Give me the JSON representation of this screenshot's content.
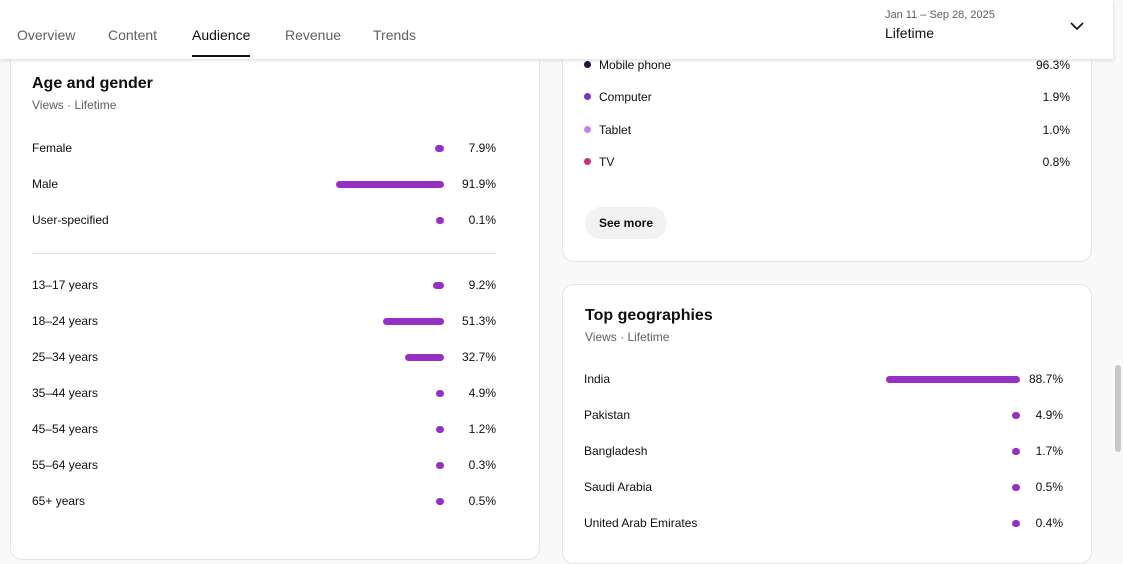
{
  "tabs": [
    "Overview",
    "Content",
    "Audience",
    "Revenue",
    "Trends"
  ],
  "active_tab": "Audience",
  "date_range": {
    "dates": "Jan 11 – Sep 28, 2025",
    "value": "Lifetime"
  },
  "age_gender": {
    "title": "Age and gender",
    "subtitle": "Views · Lifetime",
    "gender": [
      {
        "label": "Female",
        "pct": 7.9,
        "text": "7.9%"
      },
      {
        "label": "Male",
        "pct": 91.9,
        "text": "91.9%"
      },
      {
        "label": "User-specified",
        "pct": 0.1,
        "text": "0.1%"
      }
    ],
    "age": [
      {
        "label": "13–17 years",
        "pct": 9.2,
        "text": "9.2%"
      },
      {
        "label": "18–24 years",
        "pct": 51.3,
        "text": "51.3%"
      },
      {
        "label": "25–34 years",
        "pct": 32.7,
        "text": "32.7%"
      },
      {
        "label": "35–44 years",
        "pct": 4.9,
        "text": "4.9%"
      },
      {
        "label": "45–54 years",
        "pct": 1.2,
        "text": "1.2%"
      },
      {
        "label": "55–64 years",
        "pct": 0.3,
        "text": "0.3%"
      },
      {
        "label": "65+ years",
        "pct": 0.5,
        "text": "0.5%"
      }
    ]
  },
  "devices": {
    "items": [
      {
        "label": "Mobile phone",
        "text": "96.3%",
        "color": "#2a0e3f"
      },
      {
        "label": "Computer",
        "text": "1.9%",
        "color": "#7b35b8"
      },
      {
        "label": "Tablet",
        "text": "1.0%",
        "color": "#c580ec"
      },
      {
        "label": "TV",
        "text": "0.8%",
        "color": "#c8307a"
      }
    ],
    "see_more": "See more"
  },
  "geographies": {
    "title": "Top geographies",
    "subtitle": "Views · Lifetime",
    "items": [
      {
        "label": "India",
        "pct": 88.7,
        "text": "88.7%"
      },
      {
        "label": "Pakistan",
        "pct": 4.9,
        "text": "4.9%"
      },
      {
        "label": "Bangladesh",
        "pct": 1.7,
        "text": "1.7%"
      },
      {
        "label": "Saudi Arabia",
        "pct": 0.5,
        "text": "0.5%"
      },
      {
        "label": "United Arab Emirates",
        "pct": 0.4,
        "text": "0.4%"
      }
    ]
  },
  "bar_color": "#9431c4"
}
